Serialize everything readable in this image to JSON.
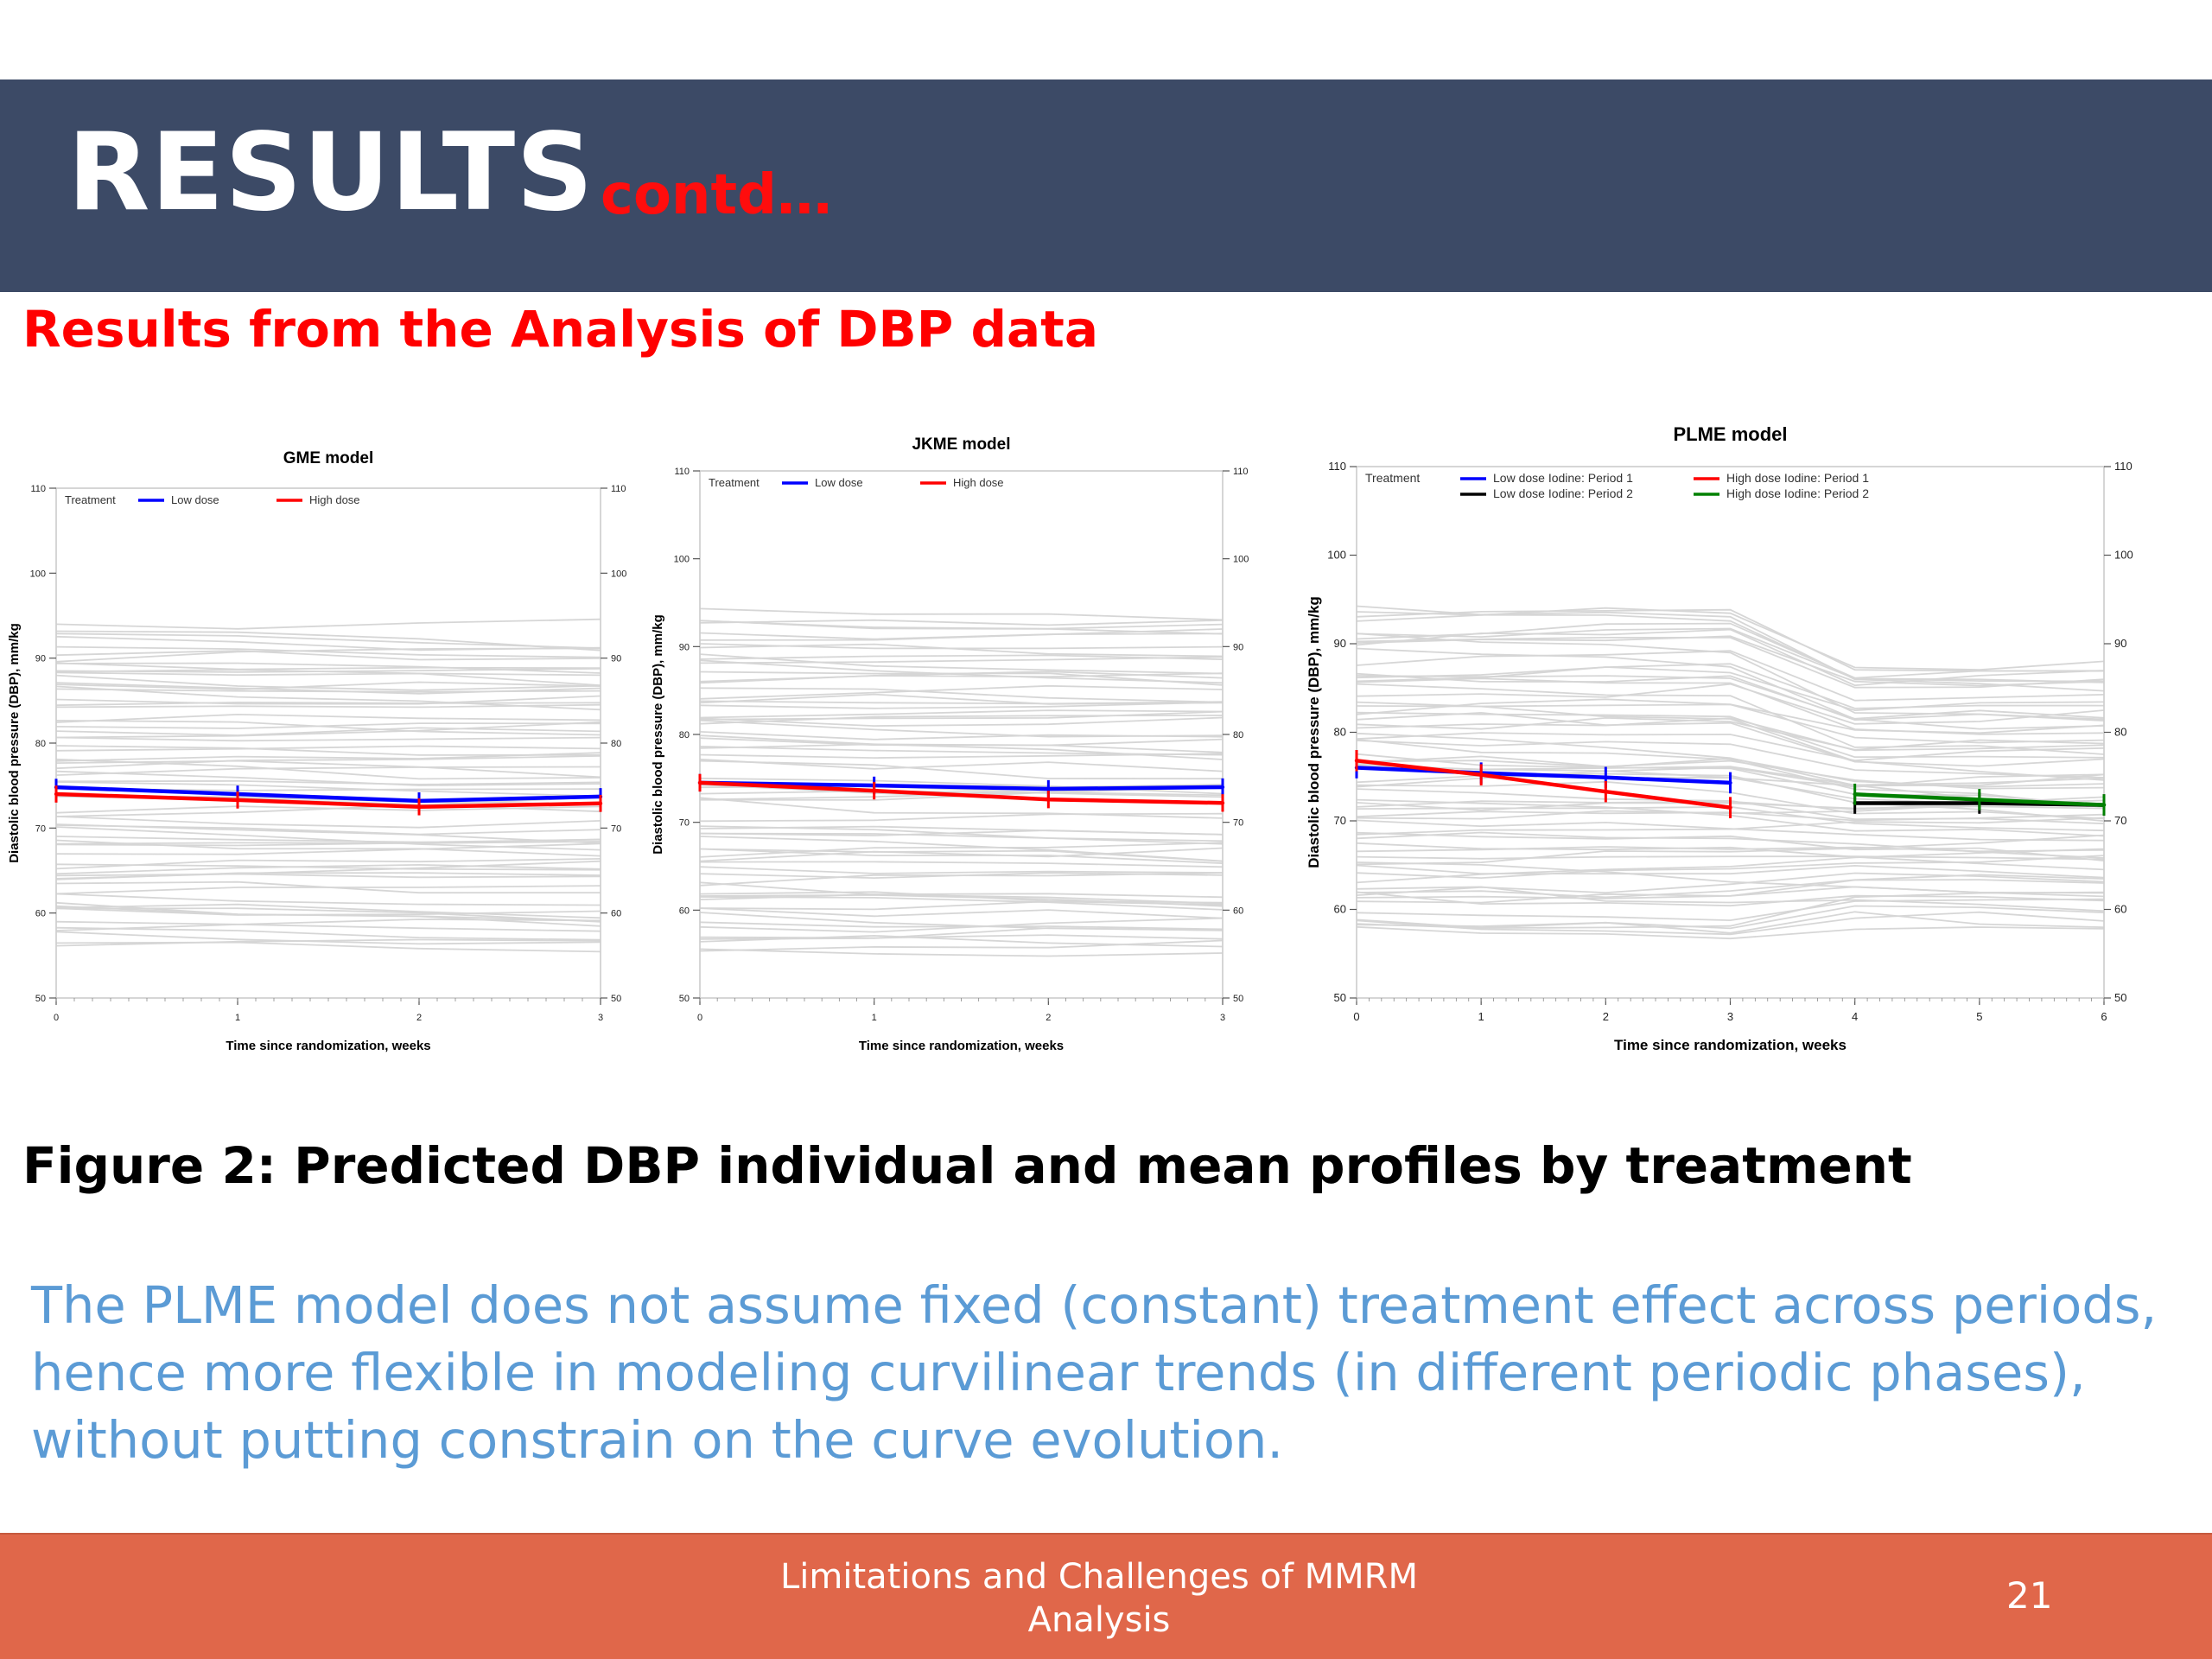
{
  "slide": {
    "title": "RESULTS",
    "title_suffix": "contd…",
    "section_heading": "Results from the Analysis of DBP data",
    "figure_caption": "Figure 2: Predicted DBP individual and mean profiles by treatment",
    "body_lines": [
      "The PLME model does not assume fixed (constant) treatment effect across periods,",
      "hence more flexible in modeling curvilinear trends (in different periodic phases),",
      "without putting constrain on the curve evolution."
    ],
    "footer_lines": [
      "Limitations and Challenges of MMRM",
      "Analysis"
    ],
    "page_number": "21"
  },
  "colors": {
    "header_band": "#3c4a66",
    "title_text": "#ffffff",
    "title_suffix": "#ff0d0d",
    "section_heading": "#ff0000",
    "body_text": "#5b9bd5",
    "footer_band": "#e0674a",
    "individual_profiles": "#d0d0d0",
    "low_dose": "#0000ff",
    "high_dose": "#ff0000",
    "low_dose_period2": "#000000",
    "high_dose_period2": "#008000"
  },
  "chart_data": [
    {
      "type": "line",
      "title": "GME model",
      "xlabel": "Time since randomization, weeks",
      "ylabel": "Diastolic blood pressure (DBP), mm/kg",
      "xlim": [
        0,
        3
      ],
      "ylim": [
        50,
        110
      ],
      "x_ticks": [
        0,
        1,
        2,
        3
      ],
      "y_ticks": [
        50,
        60,
        70,
        80,
        90,
        100,
        110
      ],
      "right_axis_ticks": true,
      "legend_title": "Treatment",
      "legend_position": "top-left",
      "background_profiles": {
        "count": 70,
        "color": "#d0d0d0",
        "y_range": [
          56,
          94
        ]
      },
      "series": [
        {
          "name": "Low dose",
          "color": "#0000ff",
          "x": [
            0,
            1,
            2,
            3
          ],
          "y": [
            74.8,
            74.0,
            73.2,
            73.7
          ],
          "err": [
            1.0,
            1.0,
            1.0,
            1.0
          ]
        },
        {
          "name": "High dose",
          "color": "#ff0000",
          "x": [
            0,
            1,
            2,
            3
          ],
          "y": [
            74.0,
            73.3,
            72.5,
            72.9
          ],
          "err": [
            1.0,
            1.0,
            1.0,
            1.0
          ]
        }
      ]
    },
    {
      "type": "line",
      "title": "JKME model",
      "xlabel": "Time since randomization, weeks",
      "ylabel": "Diastolic blood pressure (DBP), mm/kg",
      "xlim": [
        0,
        3
      ],
      "ylim": [
        50,
        110
      ],
      "x_ticks": [
        0,
        1,
        2,
        3
      ],
      "y_ticks": [
        50,
        60,
        70,
        80,
        90,
        100,
        110
      ],
      "right_axis_ticks": true,
      "legend_title": "Treatment",
      "legend_position": "top-left",
      "background_profiles": {
        "count": 70,
        "color": "#d0d0d0",
        "y_range": [
          55,
          94
        ]
      },
      "series": [
        {
          "name": "Low dose",
          "color": "#0000ff",
          "x": [
            0,
            1,
            2,
            3
          ],
          "y": [
            74.5,
            74.2,
            73.8,
            74.0
          ],
          "err": [
            1.0,
            1.0,
            1.0,
            1.0
          ]
        },
        {
          "name": "High dose",
          "color": "#ff0000",
          "x": [
            0,
            1,
            2,
            3
          ],
          "y": [
            74.5,
            73.6,
            72.6,
            72.2
          ],
          "err": [
            1.0,
            1.0,
            1.0,
            1.0
          ]
        }
      ]
    },
    {
      "type": "line",
      "title": "PLME model",
      "xlabel": "Time since randomization, weeks",
      "ylabel": "Diastolic blood pressure (DBP), mm/kg",
      "xlim": [
        0,
        6
      ],
      "ylim": [
        50,
        110
      ],
      "x_ticks": [
        0,
        1,
        2,
        3,
        4,
        5,
        6
      ],
      "y_ticks": [
        50,
        60,
        70,
        80,
        90,
        100,
        110
      ],
      "right_axis_ticks": true,
      "legend_title": "Treatment",
      "legend_position": "top-left",
      "background_profiles": {
        "count": 70,
        "color": "#d0d0d0",
        "y_range": [
          57,
          94
        ]
      },
      "series": [
        {
          "name": "Low dose Iodine: Period 1",
          "color": "#0000ff",
          "x": [
            0,
            1,
            2,
            3
          ],
          "y": [
            76.0,
            75.4,
            74.9,
            74.3
          ],
          "err": [
            1.2,
            1.2,
            1.2,
            1.2
          ]
        },
        {
          "name": "High dose Iodine: Period 1",
          "color": "#ff0000",
          "x": [
            0,
            1,
            2,
            3
          ],
          "y": [
            76.8,
            75.2,
            73.3,
            71.5
          ],
          "err": [
            1.2,
            1.2,
            1.2,
            1.2
          ]
        },
        {
          "name": "Low dose Iodine: Period 2",
          "color": "#000000",
          "x": [
            4,
            5,
            6
          ],
          "y": [
            72.0,
            72.0,
            71.8
          ],
          "err": [
            1.2,
            1.2,
            1.2
          ]
        },
        {
          "name": "High dose Iodine: Period 2",
          "color": "#008000",
          "x": [
            4,
            5,
            6
          ],
          "y": [
            73.0,
            72.4,
            71.8
          ],
          "err": [
            1.2,
            1.2,
            1.2
          ]
        }
      ]
    }
  ]
}
